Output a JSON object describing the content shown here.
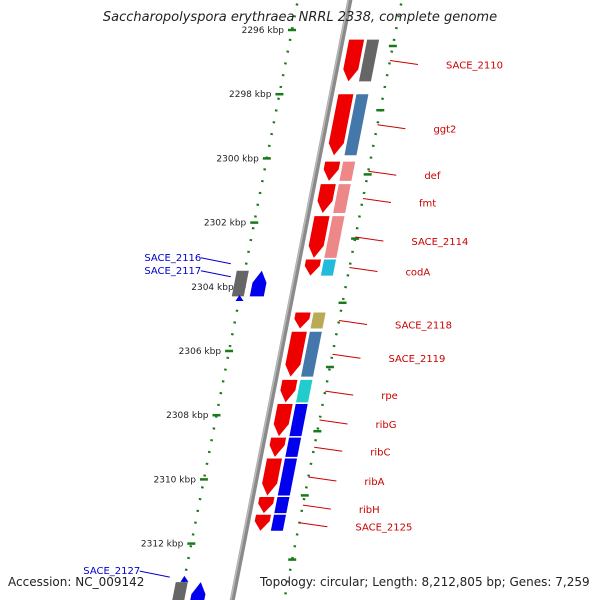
{
  "title": "Saccharopolyspora erythraea NRRL 2338, complete genome",
  "footer": {
    "accession": "Accession: NC_009142",
    "topology": "Topology: circular; Length: 8,212,805 bp; Genes: 7,259"
  },
  "colors": {
    "background": "#ffffff",
    "backbone": "#8a8a8a",
    "tick": "#1a7a1a",
    "forward_gene_label": "#cc0000",
    "reverse_gene_label": "#0000cc"
  },
  "ticks": [
    {
      "label": "2296 kbp",
      "kbp": 2296
    },
    {
      "label": "2298 kbp",
      "kbp": 2298
    },
    {
      "label": "2300 kbp",
      "kbp": 2300
    },
    {
      "label": "2302 kbp",
      "kbp": 2302
    },
    {
      "label": "2304 kbp",
      "kbp": 2304
    },
    {
      "label": "2306 kbp",
      "kbp": 2306
    },
    {
      "label": "2308 kbp",
      "kbp": 2308
    },
    {
      "label": "2310 kbp",
      "kbp": 2310
    },
    {
      "label": "2312 kbp",
      "kbp": 2312
    }
  ],
  "genes": [
    {
      "name": "SACE_2110",
      "strand": "+",
      "gene_color": "#ee0000",
      "cog_color": "#666666",
      "start_kbp": 2296.3,
      "end_kbp": 2297.6
    },
    {
      "name": "ggt2",
      "strand": "+",
      "gene_color": "#ee0000",
      "cog_color": "#4477aa",
      "start_kbp": 2298.0,
      "end_kbp": 2299.9
    },
    {
      "name": "def",
      "strand": "+",
      "gene_color": "#ee0000",
      "cog_color": "#ee8888",
      "start_kbp": 2300.1,
      "end_kbp": 2300.7
    },
    {
      "name": "fmt",
      "strand": "+",
      "gene_color": "#ee0000",
      "cog_color": "#ee8888",
      "start_kbp": 2300.8,
      "end_kbp": 2301.7
    },
    {
      "name": "SACE_2114",
      "strand": "+",
      "gene_color": "#ee0000",
      "cog_color": "#ee8888",
      "start_kbp": 2301.8,
      "end_kbp": 2303.1
    },
    {
      "name": "codA",
      "strand": "+",
      "gene_color": "#ee0000",
      "cog_color": "#22bbdd",
      "start_kbp": 2303.15,
      "end_kbp": 2303.65
    },
    {
      "name": "SACE_2118",
      "strand": "+",
      "gene_color": "#ee0000",
      "cog_color": "#bbaa55",
      "start_kbp": 2304.8,
      "end_kbp": 2305.3
    },
    {
      "name": "SACE_2119",
      "strand": "+",
      "gene_color": "#ee0000",
      "cog_color": "#4477aa",
      "start_kbp": 2305.4,
      "end_kbp": 2306.8
    },
    {
      "name": "rpe",
      "strand": "+",
      "gene_color": "#ee0000",
      "cog_color": "#22cccc",
      "start_kbp": 2306.9,
      "end_kbp": 2307.6
    },
    {
      "name": "ribG",
      "strand": "+",
      "gene_color": "#ee0000",
      "cog_color": "#0000ee",
      "start_kbp": 2307.65,
      "end_kbp": 2308.65
    },
    {
      "name": "ribC",
      "strand": "+",
      "gene_color": "#ee0000",
      "cog_color": "#0000ee",
      "start_kbp": 2308.7,
      "end_kbp": 2309.3
    },
    {
      "name": "ribA",
      "strand": "+",
      "gene_color": "#ee0000",
      "cog_color": "#0000ee",
      "start_kbp": 2309.35,
      "end_kbp": 2310.5
    },
    {
      "name": "ribH",
      "strand": "+",
      "gene_color": "#ee0000",
      "cog_color": "#0000ee",
      "start_kbp": 2310.55,
      "end_kbp": 2311.05
    },
    {
      "name": "SACE_2125",
      "strand": "+",
      "gene_color": "#ee0000",
      "cog_color": "#0000ee",
      "start_kbp": 2311.1,
      "end_kbp": 2311.6
    },
    {
      "name": "SACE_2116",
      "strand": "-",
      "gene_color": "#0000ee",
      "cog_color": "#666666",
      "start_kbp": 2303.5,
      "end_kbp": 2304.3
    },
    {
      "name": "SACE_2117",
      "strand": "-",
      "gene_color": "#0000ee",
      "cog_color": "#0000ee",
      "start_kbp": 2303.5,
      "end_kbp": 2304.3
    },
    {
      "name": "SACE_2127",
      "strand": "-",
      "gene_color": "#0000ee",
      "cog_color": "#666666",
      "start_kbp": 2313.2,
      "end_kbp": 2314.0
    }
  ]
}
